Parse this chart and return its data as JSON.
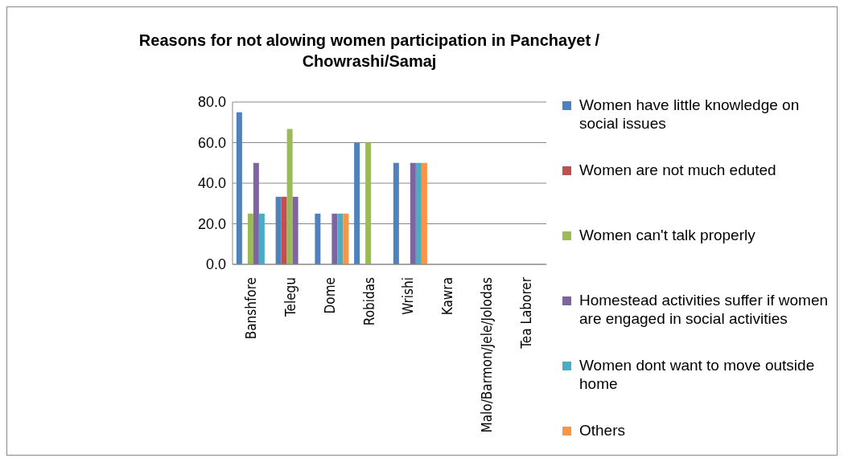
{
  "chart_data": {
    "type": "bar",
    "title": "Reasons for not alowing women participation in Panchayet / Chowrashi/Samaj",
    "categories": [
      "Banshfore",
      "Telegu",
      "Dome",
      "Robidas",
      "Wrishi",
      "Kawra",
      "Malo/Barmon/Jele/Jolodas",
      "Tea Laborer"
    ],
    "series": [
      {
        "name": "Women have little knowledge on social issues",
        "color": "#4f81bd",
        "values": [
          75,
          33.3,
          25,
          60,
          50,
          0,
          0,
          0
        ]
      },
      {
        "name": "Women are not much eduted",
        "color": "#c0504d",
        "values": [
          0,
          33.3,
          0,
          0,
          0,
          0,
          0,
          0
        ]
      },
      {
        "name": "Women can't talk properly",
        "color": "#9bbb59",
        "values": [
          25,
          66.7,
          0,
          60,
          0,
          0,
          0,
          0
        ]
      },
      {
        "name": "Homestead activities suffer if women are engaged in social activities",
        "color": "#8064a2",
        "values": [
          50,
          33.3,
          25,
          0,
          50,
          0,
          0,
          0
        ]
      },
      {
        "name": "Women dont want to move outside home",
        "color": "#4bacc6",
        "values": [
          25,
          0,
          25,
          0,
          50,
          0,
          0,
          0
        ]
      },
      {
        "name": "Others",
        "color": "#f79646",
        "values": [
          0,
          0,
          25,
          0,
          50,
          0,
          0,
          0
        ]
      }
    ],
    "ylim": [
      0,
      80
    ],
    "yticks": [
      {
        "value": 0,
        "label": "0.0"
      },
      {
        "value": 20,
        "label": "20.0"
      },
      {
        "value": 40,
        "label": "40.0"
      },
      {
        "value": 60,
        "label": "60.0"
      },
      {
        "value": 80,
        "label": "80.0"
      }
    ],
    "grid": "y",
    "legend": "right"
  }
}
